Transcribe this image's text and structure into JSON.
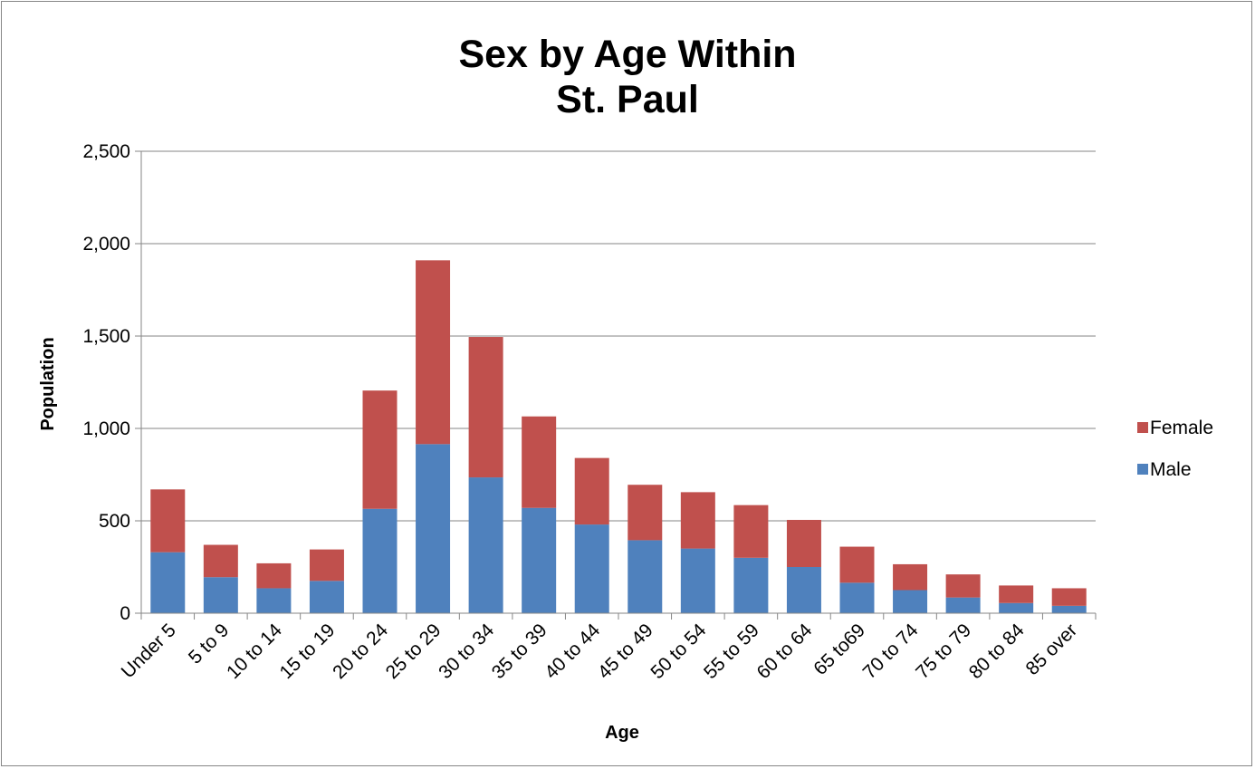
{
  "chart_data": {
    "type": "bar",
    "stacked": true,
    "title": [
      "Sex by Age Within",
      "St. Paul"
    ],
    "xlabel": "Age",
    "ylabel": "Population",
    "ylim": [
      0,
      2500
    ],
    "yticks": [
      "0",
      "500",
      "1,000",
      "1,500",
      "2,000",
      "2,500"
    ],
    "ytick_values": [
      0,
      500,
      1000,
      1500,
      2000,
      2500
    ],
    "grid": true,
    "legend_position": "right",
    "categories": [
      "Under 5",
      "5 to 9",
      "10 to 14",
      "15 to 19",
      "20 to 24",
      "25 to 29",
      "30 to 34",
      "35 to 39",
      "40 to 44",
      "45 to 49",
      "50 to 54",
      "55 to 59",
      "60 to 64",
      "65 to69",
      "70 to 74",
      "75 to 79",
      "80 to 84",
      "85 over"
    ],
    "series": [
      {
        "name": "Male",
        "color": "#4F81BD",
        "values": [
          330,
          195,
          135,
          175,
          565,
          915,
          735,
          570,
          480,
          395,
          350,
          300,
          250,
          165,
          125,
          85,
          55,
          40
        ]
      },
      {
        "name": "Female",
        "color": "#C0504D",
        "values": [
          340,
          175,
          135,
          170,
          640,
          995,
          760,
          495,
          360,
          300,
          305,
          285,
          255,
          195,
          140,
          125,
          95,
          95
        ]
      }
    ],
    "legend": [
      "Female",
      "Male"
    ]
  }
}
